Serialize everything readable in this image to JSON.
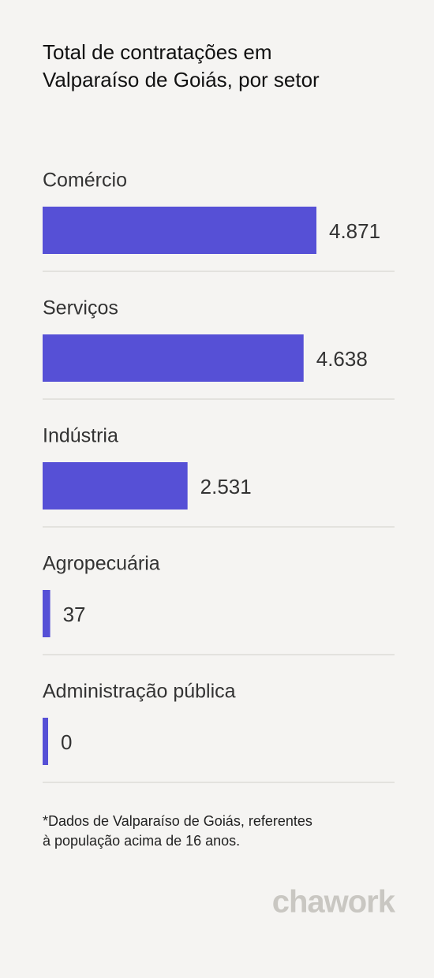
{
  "chart_data": {
    "type": "bar",
    "orientation": "horizontal",
    "title": [
      "Total de contratações em",
      "Valparaíso de Goiás, por setor"
    ],
    "categories": [
      "Comércio",
      "Serviços",
      "Indústria",
      "Agropecuária",
      "Administração pública"
    ],
    "values": [
      4871,
      4638,
      2531,
      37,
      0
    ],
    "value_labels": [
      "4.871",
      "4.638",
      "2.531",
      "37",
      "0"
    ],
    "color": "#5650d6",
    "footnote": [
      "*Dados de Valparaíso de Goiás, referentes",
      "à população acima de 16 anos."
    ],
    "brand": "chawork"
  }
}
